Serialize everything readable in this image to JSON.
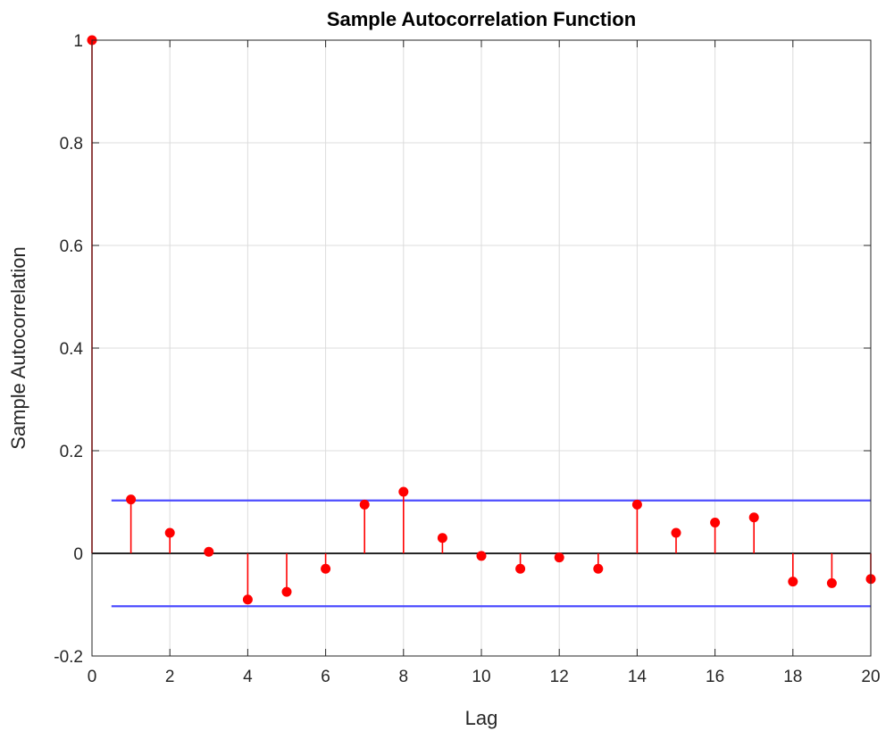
{
  "chart_data": {
    "type": "stem",
    "title": "Sample Autocorrelation Function",
    "xlabel": "Lag",
    "ylabel": "Sample Autocorrelation",
    "xlim": [
      0,
      20
    ],
    "ylim": [
      -0.2,
      1
    ],
    "x_ticks": [
      0,
      2,
      4,
      6,
      8,
      10,
      12,
      14,
      16,
      18,
      20
    ],
    "x_tick_labels": [
      "0",
      "2",
      "4",
      "6",
      "8",
      "10",
      "12",
      "14",
      "16",
      "18",
      "20"
    ],
    "y_ticks": [
      -0.2,
      0,
      0.2,
      0.4,
      0.6,
      0.8,
      1
    ],
    "y_tick_labels": [
      "-0.2",
      "0",
      "0.2",
      "0.4",
      "0.6",
      "0.8",
      "1"
    ],
    "grid": true,
    "series": [
      {
        "x": [
          0,
          1,
          2,
          3,
          4,
          5,
          6,
          7,
          8,
          9,
          10,
          11,
          12,
          13,
          14,
          15,
          16,
          17,
          18,
          19,
          20
        ],
        "values": [
          1.0,
          0.105,
          0.04,
          0.003,
          -0.09,
          -0.075,
          -0.03,
          0.095,
          0.12,
          0.03,
          -0.005,
          -0.03,
          -0.008,
          -0.03,
          0.095,
          0.04,
          0.06,
          0.07,
          -0.055,
          -0.058,
          -0.05
        ]
      }
    ],
    "confidence_bounds": {
      "upper": 0.103,
      "lower": -0.103,
      "x_range": [
        0.5,
        20
      ]
    },
    "colors": {
      "stem": "#ff0000",
      "bounds": "#4d4dff",
      "zero_line": "#262626",
      "grid": "#dcdcdc",
      "axes": "#262626"
    }
  }
}
